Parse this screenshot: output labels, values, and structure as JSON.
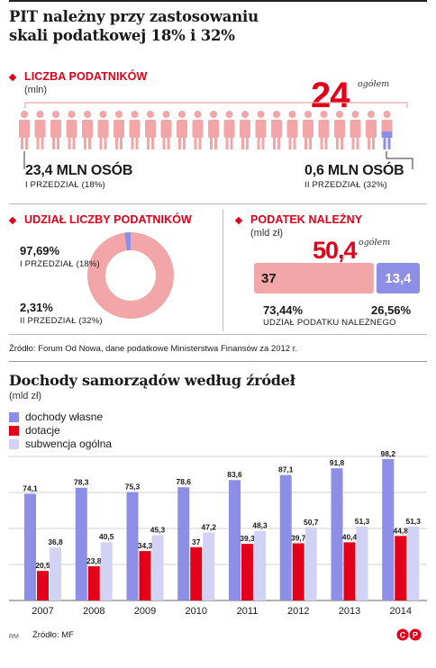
{
  "title_line1": "PIT należny przy zastosowaniu",
  "title_line2": "skali podatkowej 18% i 32%",
  "colors": {
    "accent": "#e2001a",
    "pink": "#f2a6a8",
    "blue": "#8d8fe6",
    "light": "#d2d2f5",
    "red": "#e2001a"
  },
  "taxpayers": {
    "title": "LICZBA PODATNIKÓW",
    "unit": "(mln)",
    "total": "24",
    "total_suffix": "ogółem",
    "first_value": "23,4 MLN OSÓB",
    "first_label": "I PRZEDZIAŁ (18%)",
    "second_value": "0,6 MLN OSÓB",
    "second_label": "II PRZEDZIAŁ (32%)"
  },
  "share": {
    "title": "UDZIAŁ LICZBY PODATNIKÓW",
    "first_pct": "97,69%",
    "first_label": "I PRZEDZIAŁ (18%)",
    "second_pct": "2,31%",
    "second_label": "II PRZEDZIAŁ (32%)"
  },
  "tax": {
    "title": "PODATEK NALEŻNY",
    "unit": "(mld zł)",
    "total": "50,4",
    "total_suffix": "ogółem",
    "first_value": "37",
    "second_value": "13,4",
    "first_pct": "73,44%",
    "second_pct": "26,56%",
    "share_label": "UDZIAŁ PODATKU NALEŻNEGO"
  },
  "source1": "Źródło: Forum Od Nowa, dane podatkowe Ministerstwa Finansów za 2012 r.",
  "chart_data": [
    {
      "type": "pie",
      "categories": [
        "I PRZEDZIAŁ (18%)",
        "II PRZEDZIAŁ (32%)"
      ],
      "values": [
        97.69,
        2.31
      ]
    },
    {
      "type": "bar",
      "categories": [
        "I PRZEDZIAŁ (18%)",
        "II PRZEDZIAŁ (32%)"
      ],
      "values": [
        37,
        13.4
      ]
    },
    {
      "type": "bar",
      "title": "Dochody samorządów według źródeł",
      "ylabel": "(mld zł)",
      "categories": [
        "2007",
        "2008",
        "2009",
        "2010",
        "2011",
        "2012",
        "2013",
        "2014"
      ],
      "series": [
        {
          "name": "dochody własne",
          "values": [
            74.1,
            78.3,
            75.3,
            78.6,
            83.6,
            87.1,
            91.8,
            98.2
          ]
        },
        {
          "name": "dotacje",
          "values": [
            20.5,
            23.8,
            34.3,
            37,
            39.3,
            39.7,
            40.4,
            44.8
          ]
        },
        {
          "name": "subwencja ogólna",
          "values": [
            36.8,
            40.5,
            45.3,
            47.2,
            48.3,
            50.7,
            51.3,
            51.3
          ]
        }
      ],
      "value_labels": [
        [
          "74,1",
          "78,3",
          "75,3",
          "78,6",
          "83,6",
          "87,1",
          "91,8",
          "98,2"
        ],
        [
          "20,5",
          "23,8",
          "34,3",
          "37",
          "39,3",
          "39,7",
          "40,4",
          "44,8"
        ],
        [
          "36,8",
          "40,5",
          "45,3",
          "47,2",
          "48,3",
          "50,7",
          "51,3",
          "51,3"
        ]
      ],
      "ylim": [
        0,
        100
      ],
      "grid": true,
      "legend": "top-left"
    }
  ],
  "source2": "Źródło: MF",
  "credit": "RM",
  "logo_text": "CP"
}
